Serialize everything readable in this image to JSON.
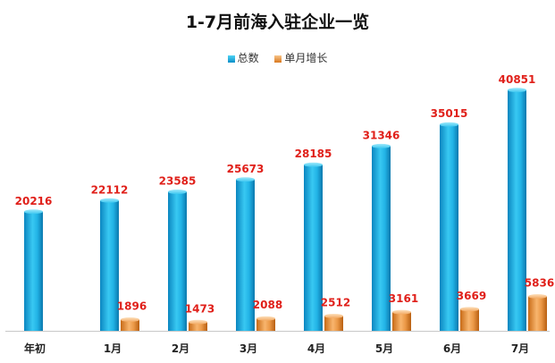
{
  "chart_data": {
    "type": "bar",
    "title": "1-7月前海入驻企业一览",
    "categories": [
      "年初",
      "1月",
      "2月",
      "3月",
      "4月",
      "5月",
      "6月",
      "7月"
    ],
    "series": [
      {
        "name": "总数",
        "color": "#1aa7de",
        "values": [
          20216,
          22112,
          23585,
          25673,
          28185,
          31346,
          35015,
          40851
        ]
      },
      {
        "name": "单月增长",
        "color": "#ec9a4a",
        "values": [
          null,
          1896,
          1473,
          2088,
          2512,
          3161,
          3669,
          5836
        ]
      }
    ],
    "ylim": [
      0,
      44000
    ],
    "legend_position": "top-center",
    "grid": false,
    "label_color": "#e0201a"
  }
}
